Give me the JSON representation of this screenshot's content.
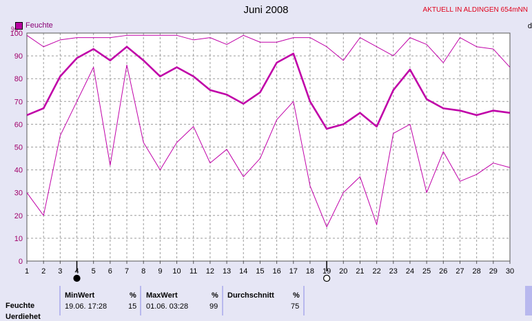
{
  "page": {
    "title": "Juni 2008",
    "status": "AKTUELL IN ALDINGEN 654mNN",
    "edge_fragment": "d"
  },
  "legend": {
    "label": "Feuchte",
    "color": "#b800a0"
  },
  "chart_data": {
    "type": "line",
    "title": "Juni 2008",
    "ylabel": "%",
    "xlim": [
      1,
      30
    ],
    "ylim": [
      0,
      100
    ],
    "y_ticks": [
      0,
      10,
      20,
      30,
      40,
      50,
      60,
      70,
      80,
      90,
      100
    ],
    "x": [
      1,
      2,
      3,
      4,
      5,
      6,
      7,
      8,
      9,
      10,
      11,
      12,
      13,
      14,
      15,
      16,
      17,
      18,
      19,
      20,
      21,
      22,
      23,
      24,
      25,
      26,
      27,
      28,
      29,
      30
    ],
    "grid": true,
    "legend_position": "top-left",
    "series": [
      {
        "name": "Feuchte",
        "role": "max",
        "color": "#c000a8",
        "values": [
          99,
          94,
          97,
          98,
          98,
          98,
          99,
          99,
          99,
          99,
          97,
          98,
          95,
          99,
          96,
          96,
          98,
          98,
          94,
          88,
          98,
          94,
          90,
          98,
          95,
          87,
          98,
          94,
          93,
          85
        ]
      },
      {
        "name": "Feuchte",
        "role": "mean",
        "color": "#c000a8",
        "values": [
          64,
          67,
          81,
          89,
          93,
          88,
          94,
          88,
          81,
          85,
          81,
          75,
          73,
          69,
          74,
          87,
          91,
          70,
          58,
          60,
          65,
          59,
          75,
          84,
          71,
          67,
          66,
          64,
          66,
          65
        ]
      },
      {
        "name": "Feuchte",
        "role": "min",
        "color": "#c000a8",
        "values": [
          30,
          20,
          55,
          70,
          85,
          42,
          86,
          52,
          40,
          52,
          59,
          43,
          49,
          37,
          45,
          62,
          70,
          33,
          15,
          30,
          37,
          16,
          56,
          60,
          30,
          48,
          35,
          38,
          43,
          41
        ]
      }
    ],
    "markers": [
      {
        "day": 4,
        "symbol": "filled-circle"
      },
      {
        "day": 19,
        "symbol": "open-circle"
      }
    ]
  },
  "table": {
    "row_label": "Feuchte",
    "row_label_2": "Uerdiehet",
    "min": {
      "header": "MinWert",
      "unit": "%",
      "time": "19.06.  17:28",
      "value": "15"
    },
    "max": {
      "header": "MaxWert",
      "unit": "%",
      "time": "01.06.  03:28",
      "value": "99"
    },
    "avg": {
      "header": "Durchschnitt",
      "unit": "%",
      "value": "75"
    }
  }
}
